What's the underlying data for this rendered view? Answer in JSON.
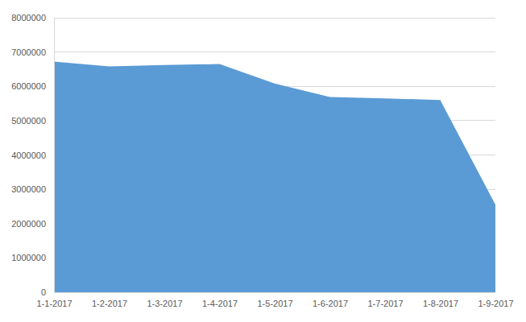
{
  "chart_data": {
    "type": "area",
    "categories": [
      "1-1-2017",
      "1-2-2017",
      "1-3-2017",
      "1-4-2017",
      "1-5-2017",
      "1-6-2017",
      "1-7-2017",
      "1-8-2017",
      "1-9-2017"
    ],
    "values": [
      6720000,
      6580000,
      6620000,
      6650000,
      6080000,
      5690000,
      5650000,
      5600000,
      2550000
    ],
    "color": "#5b9bd5",
    "ylim": [
      0,
      8000000
    ],
    "yticks": [
      0,
      1000000,
      2000000,
      3000000,
      4000000,
      5000000,
      6000000,
      7000000,
      8000000
    ],
    "grid": true
  }
}
